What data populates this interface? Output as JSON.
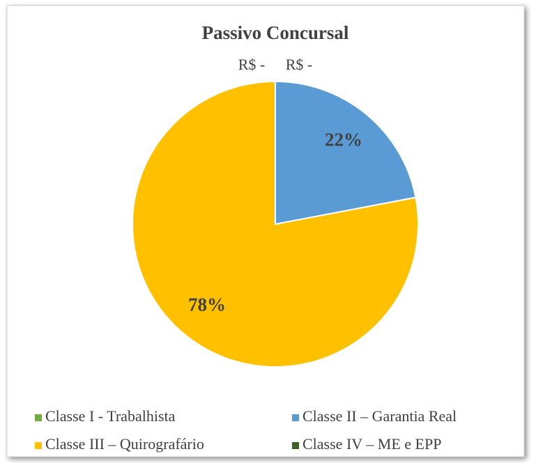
{
  "chart_data": {
    "type": "pie",
    "title": "Passivo Concursal",
    "categories": [
      "Classe I - Trabalhista",
      "Classe II – Garantia Real",
      "Classe III – Quirografário",
      "Classe IV – ME e EPP"
    ],
    "values": [
      0,
      22,
      78,
      0
    ],
    "value_labels": [
      "R$ -",
      "22%",
      "78%",
      "R$ -"
    ],
    "colors": [
      "#70ad47",
      "#5b9bd5",
      "#ffc000",
      "#3b6326"
    ],
    "legend": "bottom"
  }
}
